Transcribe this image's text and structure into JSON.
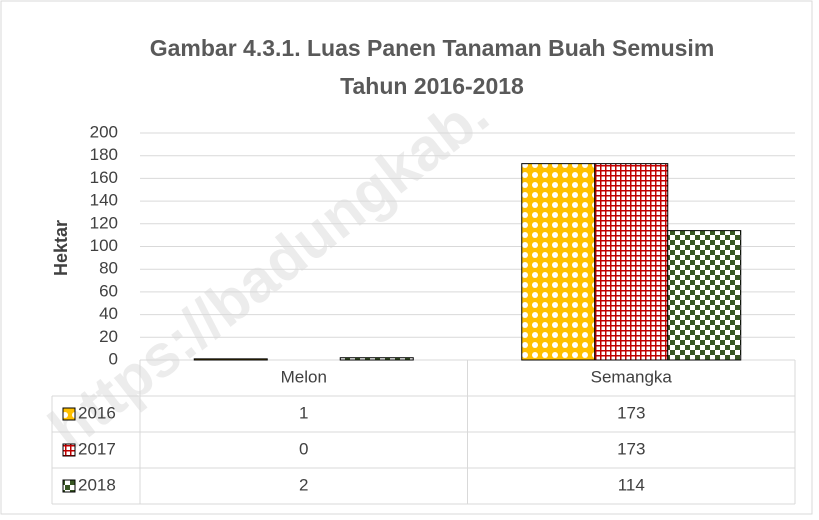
{
  "chart_data": {
    "type": "bar",
    "title": [
      "Gambar 4.3.1. Luas Panen Tanaman Buah Semusim",
      "Tahun 2016-2018"
    ],
    "y_axis_label": "Hektar",
    "watermark": "https://badungkab.",
    "categories": [
      "Melon",
      "Semangka"
    ],
    "series": [
      {
        "name": "2016",
        "color": "#ffc000",
        "values": [
          1,
          173
        ]
      },
      {
        "name": "2017",
        "color": "#c00000",
        "values": [
          0,
          173
        ]
      },
      {
        "name": "2018",
        "color": "#375623",
        "values": [
          2,
          114
        ]
      }
    ],
    "ylim": [
      0,
      200
    ],
    "yticks": [
      0,
      20,
      40,
      60,
      80,
      100,
      120,
      140,
      160,
      180,
      200
    ],
    "grid": true,
    "data_table": true
  }
}
